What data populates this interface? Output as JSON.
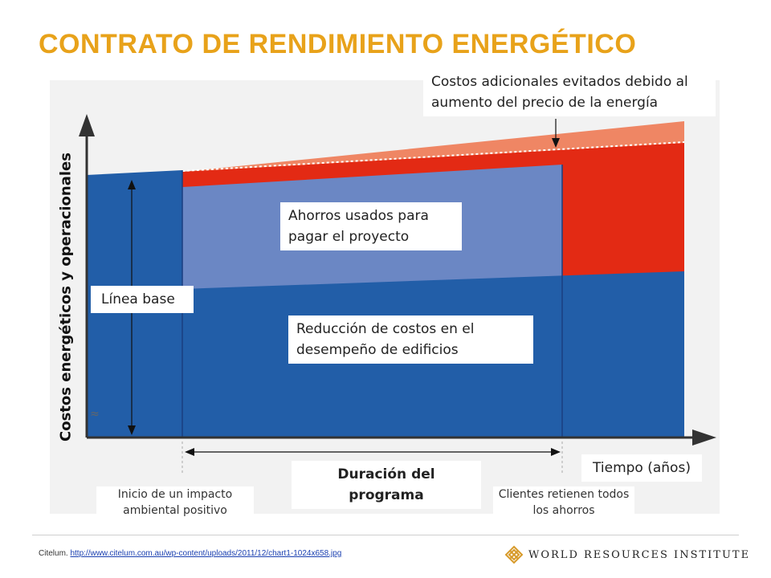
{
  "title": "CONTRATO DE RENDIMIENTO ENERGÉTICO",
  "labels": {
    "avoided_costs": "Costos adicionales evitados debido al aumento del precio de la energía",
    "savings_used": "Ahorros usados para pagar el proyecto",
    "baseline": "Línea base",
    "cost_reduction": "Reducción de costos en el desempeño de edificios",
    "y_axis": "Costos energéticos y operacionales",
    "x_axis": "Tiempo (años)",
    "program_duration": "Duración del programa",
    "start_note": "Inicio de un impacto ambiental positivo",
    "end_note": "Clientes retienen todos los ahorros"
  },
  "colors": {
    "title": "#e8a21a",
    "dark_blue": "#225ea8",
    "light_blue": "#6b87c4",
    "red": "#e32a14",
    "salmon": "#ef8664"
  },
  "citation": {
    "prefix": "Citelum.",
    "url": "http://www.citelum.com.au/wp-content/uploads/2011/12/chart1-1024x658.jpg"
  },
  "logo": {
    "text": "WORLD RESOURCES INSTITUTE",
    "icon": "wri-lattice-logo-icon"
  }
}
